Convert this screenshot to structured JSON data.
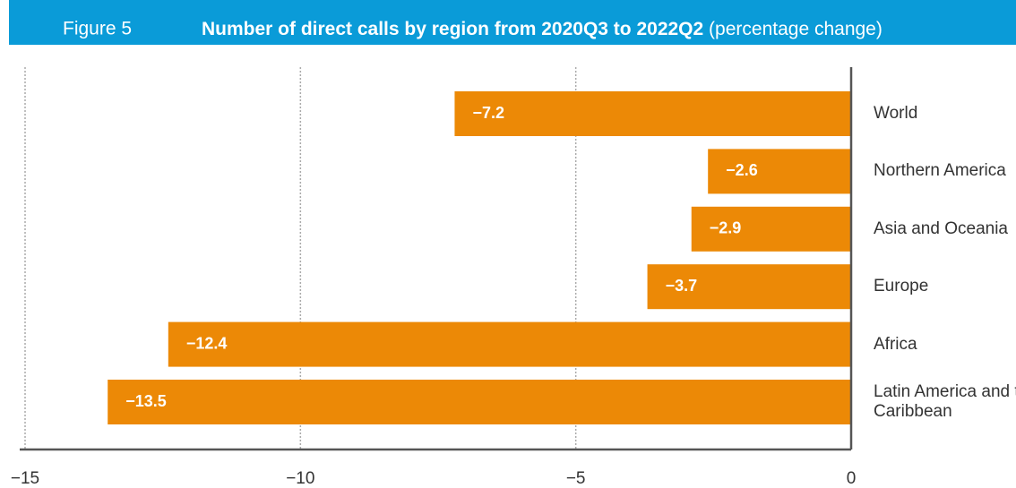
{
  "chart_data": {
    "type": "barh",
    "figure_label": "Figure 5",
    "title": "Number of direct calls by region from 2020Q3 to 2022Q2",
    "subtitle": "(percentage change)",
    "categories": [
      "World",
      "Northern America",
      "Asia and Oceania",
      "Europe",
      "Africa",
      "Latin America and the Caribbean"
    ],
    "values": [
      -7.2,
      -2.6,
      -2.9,
      -3.7,
      -12.4,
      -13.5
    ],
    "value_labels": [
      "−7.2",
      "−2.6",
      "−2.9",
      "−3.7",
      "−12.4",
      "−13.5"
    ],
    "color": "#ec8906",
    "xlim": [
      -15,
      0
    ],
    "xticks": [
      {
        "value": -15,
        "label": "−15"
      },
      {
        "value": -10,
        "label": "−10"
      },
      {
        "value": -5,
        "label": "−5"
      },
      0
    ],
    "grid": true
  }
}
